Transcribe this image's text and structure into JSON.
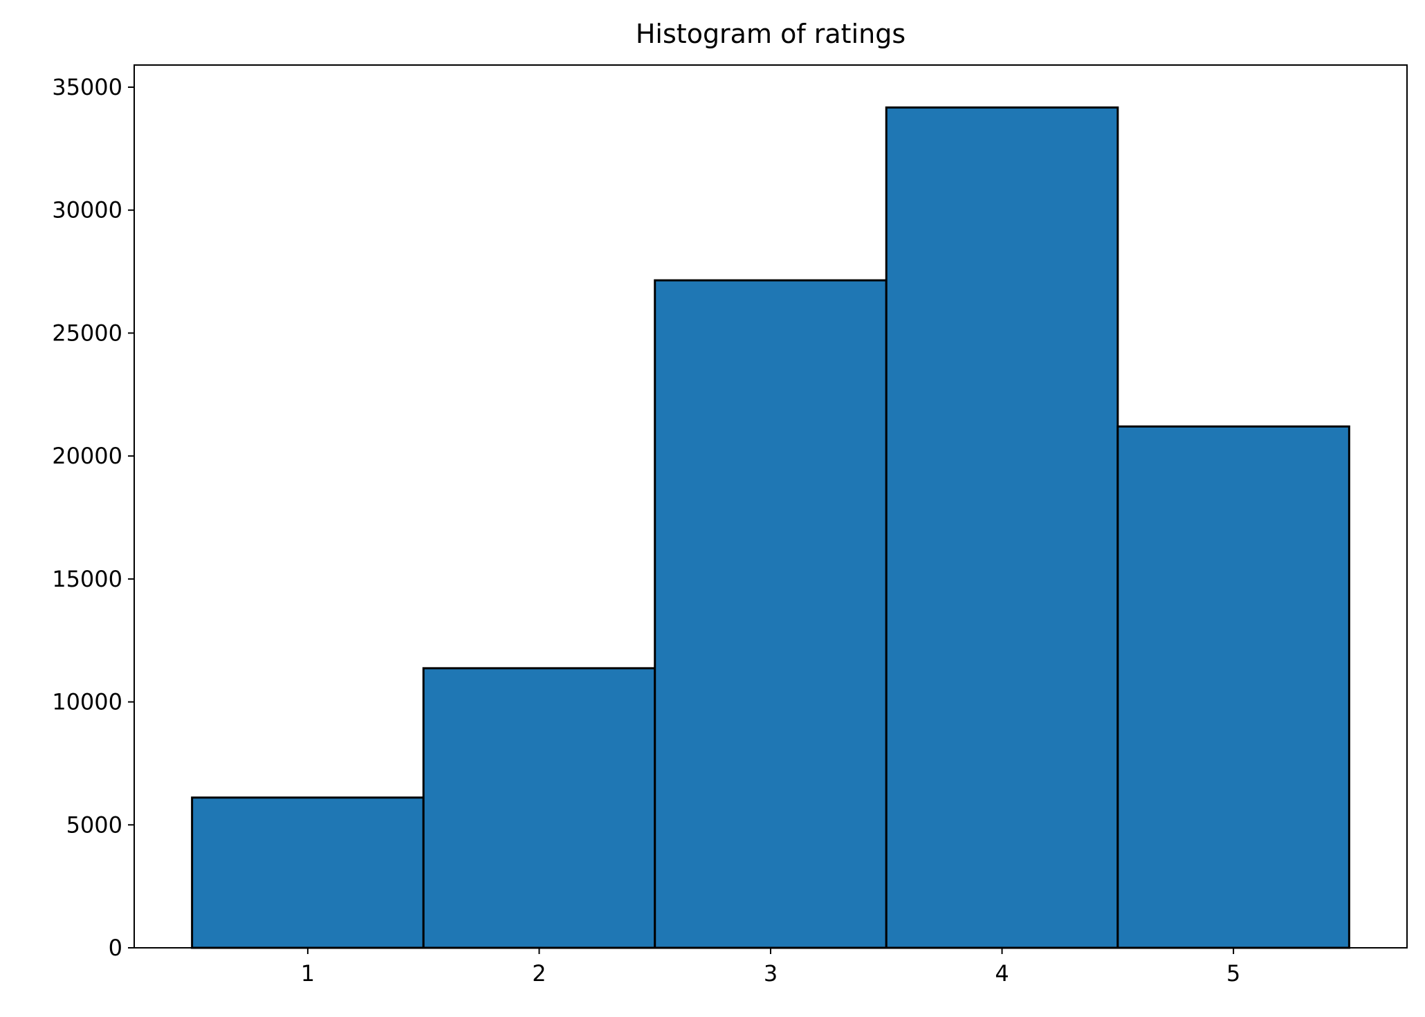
{
  "chart_data": {
    "type": "bar",
    "title": "Histogram of ratings",
    "xlabel": "",
    "ylabel": "",
    "categories": [
      "1",
      "2",
      "3",
      "4",
      "5"
    ],
    "values": [
      6110,
      11370,
      27145,
      34174,
      21201
    ],
    "xlim": [
      0.25,
      5.75
    ],
    "ylim": [
      0,
      35900
    ],
    "x_ticks": [
      "1",
      "2",
      "3",
      "4",
      "5"
    ],
    "y_ticks": [
      "0",
      "5000",
      "10000",
      "15000",
      "20000",
      "25000",
      "30000",
      "35000"
    ],
    "bar_color": "#1f77b4",
    "edge_color": "#000000",
    "grid": false,
    "legend": "none"
  }
}
